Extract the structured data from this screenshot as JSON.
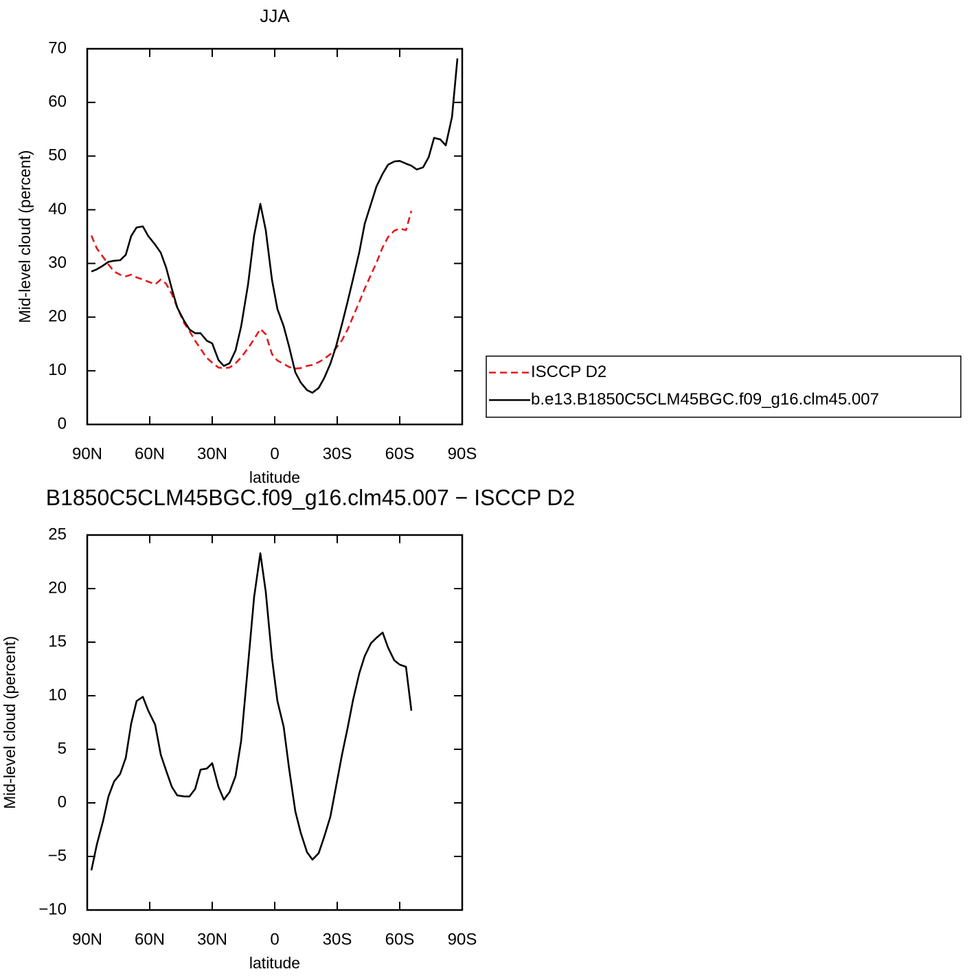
{
  "chart_data": [
    {
      "type": "line",
      "title": "JJA",
      "xlabel": "latitude",
      "ylabel": "Mid-level cloud (percent)",
      "x": [
        88,
        85.4,
        82.4,
        79.8,
        77.1,
        74.2,
        71.5,
        68.9,
        66.3,
        63.3,
        60.7,
        57.4,
        54.7,
        52.1,
        49.4,
        46.8,
        43.5,
        40.9,
        38.2,
        35.6,
        32.6,
        30,
        27,
        24.4,
        21.7,
        18.8,
        16.1,
        12.8,
        9.9,
        6.9,
        4.3,
        1.3,
        -1.3,
        -4.3,
        -6.9,
        -9.9,
        -12.5,
        -15.5,
        -18.1,
        -21.1,
        -23.7,
        -26.7,
        -29.4,
        -32.3,
        -35,
        -37.6,
        -40.6,
        -43.2,
        -46.2,
        -48.8,
        -51.8,
        -54.4,
        -57.4,
        -60,
        -63,
        -65.6,
        -68.2,
        -71.2,
        -73.9,
        -76.5,
        -79.5,
        -82.1,
        -85.1,
        -87.7
      ],
      "series": [
        {
          "name": "ISCCP D2",
          "color": "#e41a1c",
          "dashed": true,
          "values": [
            35.2,
            32.8,
            31.2,
            29.8,
            28.5,
            27.9,
            27.6,
            27.9,
            27.4,
            27.0,
            26.6,
            26.1,
            27.0,
            26.2,
            24.3,
            21.8,
            18.9,
            17.4,
            15.6,
            14.1,
            12.4,
            11.5,
            10.6,
            10.5,
            10.6,
            11.4,
            12.5,
            14.2,
            15.9,
            17.8,
            16.8,
            13.1,
            11.9,
            11.3,
            10.7,
            10.4,
            10.5,
            10.9,
            11.1,
            11.6,
            12.2,
            13.1,
            14.2,
            15.7,
            17.7,
            20.1,
            22.8,
            25.3,
            27.9,
            30.1,
            33.0,
            34.9,
            36.1,
            36.5,
            36.2,
            39.8,
            null,
            null,
            null,
            null,
            null,
            null,
            null,
            null
          ]
        },
        {
          "name": "b.e13.B1850C5CLM45BGC.f09_g16.clm45.007",
          "color": "#000000",
          "dashed": false,
          "values": [
            28.5,
            28.9,
            29.6,
            30.3,
            30.5,
            30.6,
            31.6,
            35.1,
            36.7,
            36.9,
            35.1,
            33.5,
            32.0,
            29.2,
            25.3,
            21.8,
            19.3,
            17.7,
            17.0,
            17.0,
            15.6,
            15.1,
            12.0,
            10.9,
            11.4,
            13.8,
            18.3,
            26.1,
            35.2,
            41.1,
            36.2,
            26.9,
            21.5,
            18.3,
            14.5,
            9.7,
            7.8,
            6.4,
            5.9,
            6.8,
            8.6,
            11.3,
            14.5,
            18.7,
            22.9,
            27.1,
            32.1,
            37.4,
            41.1,
            44.3,
            46.7,
            48.4,
            49.0,
            49.1,
            48.6,
            48.2,
            47.5,
            47.9,
            49.8,
            53.4,
            53.1,
            52.0,
            57.3,
            68.2
          ]
        }
      ],
      "xlim": [
        90,
        -90
      ],
      "xticks": [
        {
          "value": 90,
          "label": "90N"
        },
        {
          "value": 60,
          "label": "60N"
        },
        {
          "value": 30,
          "label": "30N"
        },
        0,
        {
          "value": -30,
          "label": "30S"
        },
        {
          "value": -60,
          "label": "60S"
        },
        {
          "value": -90,
          "label": "90S"
        }
      ],
      "ylim": [
        0,
        70
      ],
      "yticks": [
        0,
        10,
        20,
        30,
        40,
        50,
        60,
        70
      ],
      "legend": "right"
    },
    {
      "type": "line",
      "title": "B1850C5CLM45BGC.f09_g16.clm45.007 − ISCCP D2",
      "xlabel": "latitude",
      "ylabel": "Mid-level cloud (percent)",
      "x": [
        88,
        85.4,
        82.4,
        79.8,
        77.1,
        74.2,
        71.5,
        68.9,
        66.3,
        63.3,
        60.7,
        57.4,
        54.7,
        52.1,
        49.4,
        46.8,
        43.5,
        40.9,
        38.2,
        35.6,
        32.6,
        30,
        27,
        24.4,
        21.7,
        18.8,
        16.1,
        12.8,
        9.9,
        6.9,
        4.3,
        1.3,
        -1.3,
        -4.3,
        -6.9,
        -9.9,
        -12.5,
        -15.5,
        -18.1,
        -21.1,
        -23.7,
        -26.7,
        -29.4,
        -32.3,
        -35,
        -37.6,
        -40.6,
        -43.2,
        -46.2,
        -48.8,
        -51.8,
        -54.4,
        -57.4,
        -60,
        -63,
        -65.6
      ],
      "series": [
        {
          "color": "#000000",
          "dashed": false,
          "values": [
            -6.3,
            -3.9,
            -1.7,
            0.6,
            2.0,
            2.7,
            4.2,
            7.4,
            9.5,
            9.9,
            8.6,
            7.3,
            4.5,
            3.0,
            1.5,
            0.7,
            0.6,
            0.6,
            1.3,
            3.1,
            3.2,
            3.7,
            1.5,
            0.3,
            1.0,
            2.5,
            5.8,
            12.9,
            19.2,
            23.3,
            19.7,
            13.5,
            9.5,
            7.1,
            3.2,
            -0.8,
            -2.8,
            -4.6,
            -5.3,
            -4.7,
            -3.2,
            -1.3,
            1.5,
            4.5,
            7.0,
            9.6,
            12.1,
            13.7,
            14.9,
            15.4,
            15.9,
            14.5,
            13.3,
            12.9,
            12.7,
            8.6
          ]
        }
      ],
      "xlim": [
        90,
        -90
      ],
      "xticks": [
        {
          "value": 90,
          "label": "90N"
        },
        {
          "value": 60,
          "label": "60N"
        },
        {
          "value": 30,
          "label": "30N"
        },
        0,
        {
          "value": -30,
          "label": "30S"
        },
        {
          "value": -60,
          "label": "60S"
        },
        {
          "value": -90,
          "label": "90S"
        }
      ],
      "ylim": [
        -10,
        25
      ],
      "yticks": [
        {
          "value": -10,
          "label": "−10"
        },
        {
          "value": -5,
          "label": "−5"
        },
        0,
        5,
        10,
        15,
        20,
        25
      ]
    }
  ]
}
